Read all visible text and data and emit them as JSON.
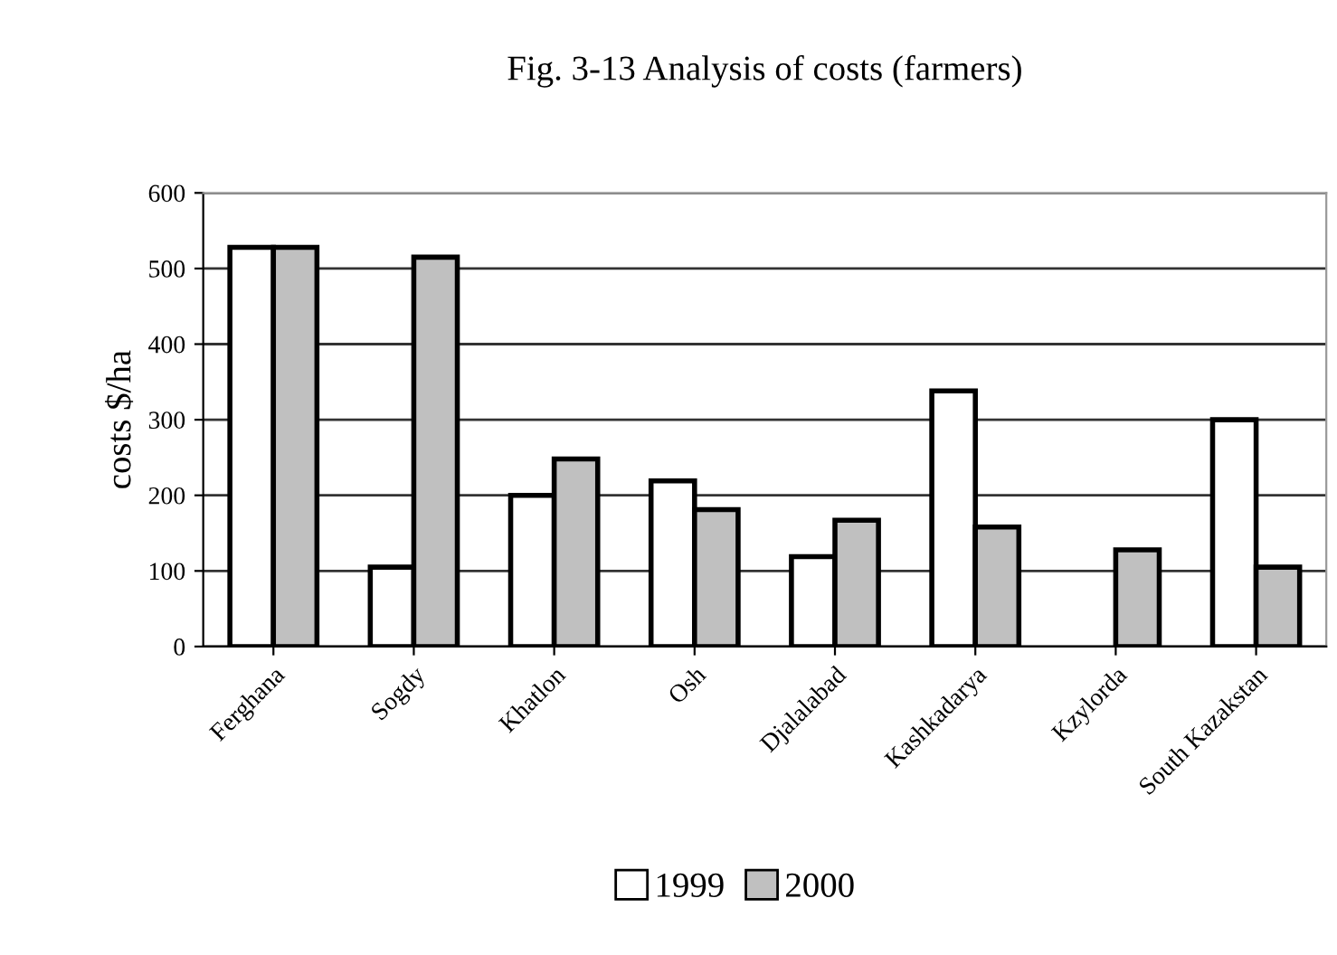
{
  "chart_data": {
    "type": "bar",
    "title": "Fig. 3-13 Analysis of costs (farmers)",
    "ylabel": "costs $/ha",
    "categories": [
      "Ferghana",
      "Sogdy",
      "Khatlon",
      "Osh",
      "Djalalabad",
      "Kashkadarya",
      "Kzylorda",
      "South Kazakstan"
    ],
    "series": [
      {
        "name": "1999",
        "color": "#ffffff",
        "values": [
          528,
          105,
          200,
          219,
          119,
          338,
          null,
          300
        ]
      },
      {
        "name": "2000",
        "color": "#c0c0c0",
        "values": [
          528,
          515,
          248,
          181,
          167,
          158,
          128,
          105
        ]
      }
    ],
    "ylim": [
      0,
      600
    ],
    "yticks": [
      0,
      100,
      200,
      300,
      400,
      500,
      600
    ],
    "grid": "y",
    "legend": "bottom"
  }
}
